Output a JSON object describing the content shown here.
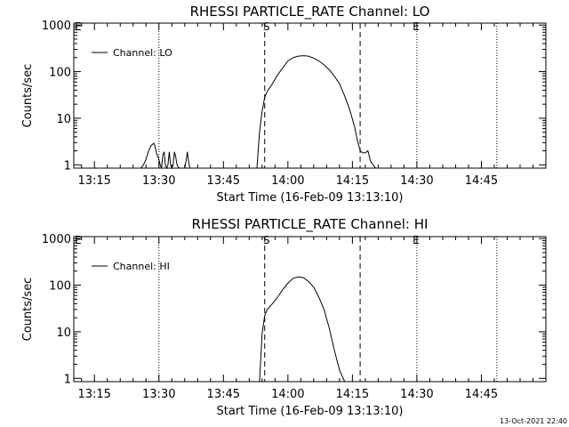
{
  "footer": {
    "timestamp": "13-Oct-2021 22:40"
  },
  "chart_data": [
    {
      "type": "line",
      "title": "RHESSI PARTICLE_RATE Channel: LO",
      "xlabel": "Start Time (16-Feb-09 13:13:10)",
      "ylabel": "Counts/sec",
      "yscale": "log",
      "xlim_min": [
        13.17,
        15.0
      ],
      "ylim": [
        0.85,
        1100
      ],
      "xticks_min": [
        13.25,
        13.5,
        13.75,
        14.0,
        14.25,
        14.5,
        14.75
      ],
      "xtick_labels": [
        "13:15",
        "13:30",
        "13:45",
        "14:00",
        "14:15",
        "14:30",
        "14:45"
      ],
      "yticks": [
        1,
        10,
        100,
        1000
      ],
      "ytick_labels": [
        "1",
        "10",
        "100",
        "1000"
      ],
      "legend": "Channel: LO",
      "legend_position": "top-left",
      "markers": [
        {
          "label": "E",
          "t": 13.17
        },
        {
          "label": "S",
          "t": 13.9
        },
        {
          "label": "E",
          "t": 14.48
        }
      ],
      "vlines_dotted": [
        13.5,
        14.5,
        14.81
      ],
      "vlines_dashed": [
        13.91,
        14.28
      ],
      "series": [
        {
          "name": "Channel: LO",
          "x": [
            13.17,
            13.43,
            13.44,
            13.45,
            13.46,
            13.47,
            13.48,
            13.485,
            13.49,
            13.5,
            13.505,
            13.51,
            13.515,
            13.52,
            13.525,
            13.53,
            13.535,
            13.54,
            13.545,
            13.55,
            13.555,
            13.56,
            13.565,
            13.57,
            13.575,
            13.58,
            13.6,
            13.605,
            13.61,
            13.615,
            13.62,
            13.88,
            13.89,
            13.9,
            13.91,
            13.92,
            13.94,
            13.96,
            13.98,
            14.0,
            14.02,
            14.04,
            14.06,
            14.08,
            14.1,
            14.12,
            14.14,
            14.16,
            14.18,
            14.2,
            14.22,
            14.24,
            14.26,
            14.27,
            14.28,
            14.29,
            14.3,
            14.31,
            14.32,
            14.33,
            14.34,
            15.0
          ],
          "y": [
            0.85,
            0.85,
            1.0,
            1.3,
            2.0,
            2.6,
            2.9,
            2.5,
            1.8,
            1.3,
            1.0,
            0.85,
            1.6,
            1.9,
            1.0,
            0.85,
            1.0,
            1.9,
            1.0,
            0.85,
            1.0,
            1.9,
            1.5,
            1.0,
            0.9,
            0.85,
            0.85,
            1.2,
            1.9,
            1.2,
            0.85,
            0.85,
            5.0,
            14,
            28,
            38,
            55,
            85,
            120,
            170,
            200,
            215,
            220,
            215,
            195,
            170,
            140,
            110,
            80,
            55,
            30,
            15,
            6,
            3.2,
            2.0,
            1.8,
            1.8,
            2.0,
            1.2,
            1.0,
            0.85,
            0.85
          ]
        }
      ]
    },
    {
      "type": "line",
      "title": "RHESSI PARTICLE_RATE Channel: HI",
      "xlabel": "Start Time (16-Feb-09 13:13:10)",
      "ylabel": "Counts/sec",
      "yscale": "log",
      "xlim_min": [
        13.17,
        15.0
      ],
      "ylim": [
        0.85,
        1100
      ],
      "xticks_min": [
        13.25,
        13.5,
        13.75,
        14.0,
        14.25,
        14.5,
        14.75
      ],
      "xtick_labels": [
        "13:15",
        "13:30",
        "13:45",
        "14:00",
        "14:15",
        "14:30",
        "14:45"
      ],
      "yticks": [
        1,
        10,
        100,
        1000
      ],
      "ytick_labels": [
        "1",
        "10",
        "100",
        "1000"
      ],
      "legend": "Channel: HI",
      "legend_position": "top-left",
      "markers": [
        {
          "label": "E",
          "t": 13.17
        },
        {
          "label": "S",
          "t": 13.9
        },
        {
          "label": "E",
          "t": 14.48
        }
      ],
      "vlines_dotted": [
        13.5,
        14.5,
        14.81
      ],
      "vlines_dashed": [
        13.91,
        14.28
      ],
      "series": [
        {
          "name": "Channel: HI",
          "x": [
            13.17,
            13.89,
            13.9,
            13.91,
            13.92,
            13.94,
            13.96,
            13.98,
            14.0,
            14.02,
            14.04,
            14.06,
            14.08,
            14.1,
            14.12,
            14.14,
            14.16,
            14.18,
            14.2,
            14.22,
            15.0
          ],
          "y": [
            0.85,
            0.85,
            9.0,
            22,
            30,
            40,
            55,
            80,
            110,
            140,
            150,
            145,
            120,
            90,
            55,
            30,
            12,
            4.0,
            1.5,
            0.85,
            0.85
          ]
        }
      ]
    }
  ]
}
